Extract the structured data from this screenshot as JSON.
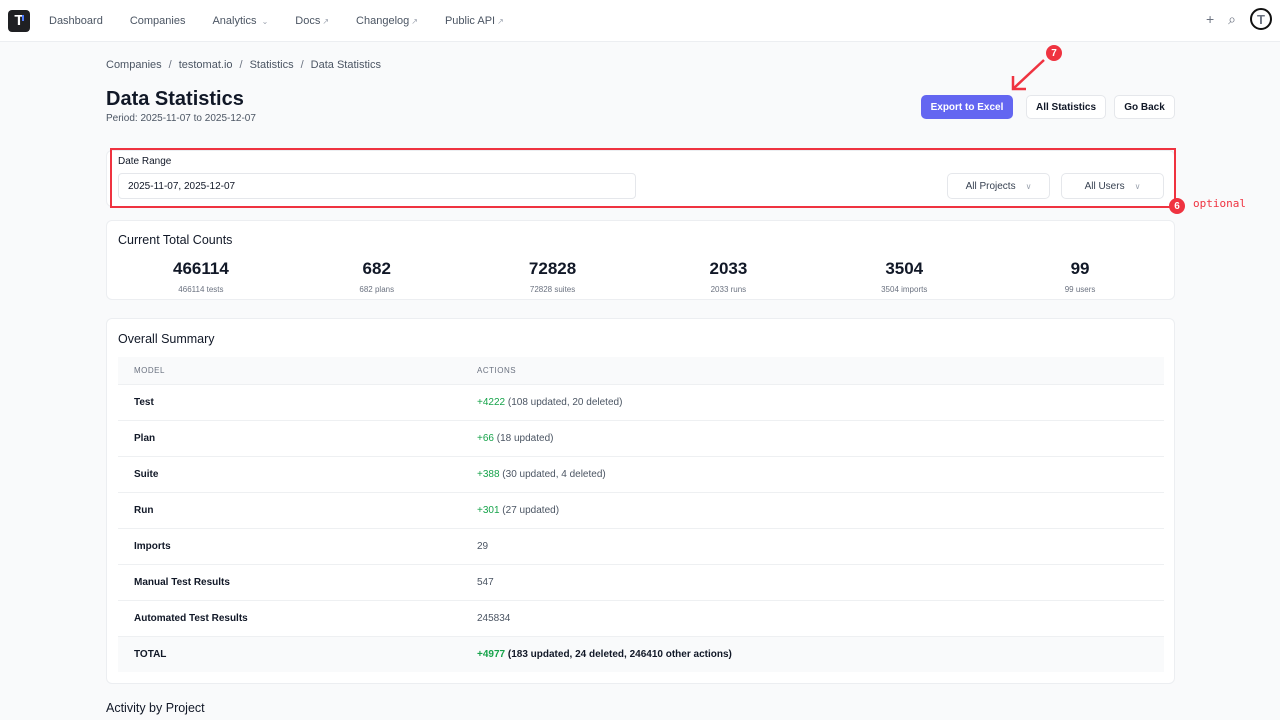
{
  "nav": {
    "logo": "T",
    "items": [
      "Dashboard",
      "Companies",
      "Analytics",
      "Docs",
      "Changelog",
      "Public API"
    ],
    "plus": "+",
    "avatar": "T"
  },
  "breadcrumb": [
    "Companies",
    "testomat.io",
    "Statistics",
    "Data Statistics"
  ],
  "page": {
    "title": "Data Statistics",
    "period": "Period: 2025-11-07 to 2025-12-07"
  },
  "buttons": {
    "export": "Export to Excel",
    "all_stats": "All Statistics",
    "back": "Go Back"
  },
  "filters": {
    "date_label": "Date Range",
    "date_value": "2025-11-07, 2025-12-07",
    "projects": "All Projects",
    "users": "All Users"
  },
  "annotations": {
    "badge7": "7",
    "badge6": "6",
    "optional": "optional",
    "color": "#ef3340"
  },
  "counts": {
    "title": "Current Total Counts",
    "items": [
      {
        "value": "466114",
        "label": "466114 tests"
      },
      {
        "value": "682",
        "label": "682 plans"
      },
      {
        "value": "72828",
        "label": "72828 suites"
      },
      {
        "value": "2033",
        "label": "2033 runs"
      },
      {
        "value": "3504",
        "label": "3504 imports"
      },
      {
        "value": "99",
        "label": "99 users"
      }
    ]
  },
  "summary": {
    "title": "Overall Summary",
    "headers": [
      "MODEL",
      "ACTIONS"
    ],
    "rows": [
      {
        "model": "Test",
        "plus": "+4222",
        "detail": " (108 updated, 20 deleted)"
      },
      {
        "model": "Plan",
        "plus": "+66",
        "detail": " (18 updated)"
      },
      {
        "model": "Suite",
        "plus": "+388",
        "detail": " (30 updated, 4 deleted)"
      },
      {
        "model": "Run",
        "plus": "+301",
        "detail": " (27 updated)"
      },
      {
        "model": "Imports",
        "plus": "",
        "detail": "29"
      },
      {
        "model": "Manual Test Results",
        "plus": "",
        "detail": "547"
      },
      {
        "model": "Automated Test Results",
        "plus": "",
        "detail": "245834"
      },
      {
        "model": "TOTAL",
        "plus": "+4977",
        "detail": " (183 updated, 24 deleted, 246410 other actions)"
      }
    ]
  },
  "activity_title": "Activity by Project"
}
